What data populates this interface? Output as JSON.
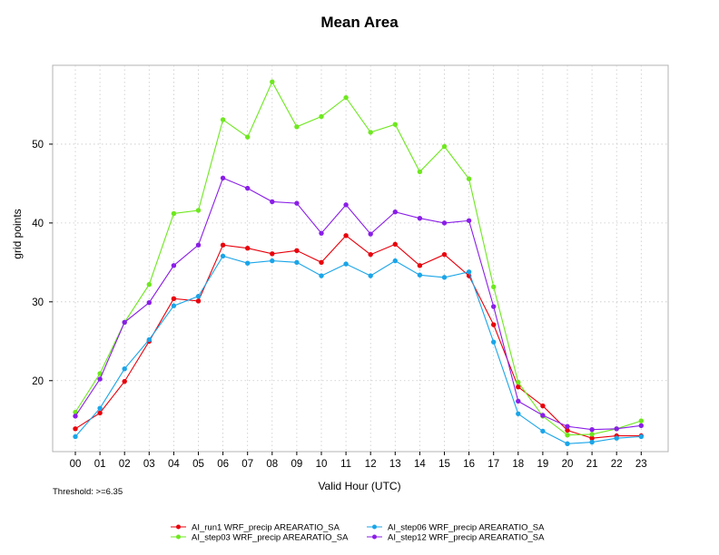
{
  "chart_data": {
    "type": "line",
    "title": "Mean Area",
    "xlabel": "Valid Hour (UTC)",
    "ylabel": "grid points",
    "note": "Threshold: >=6.35",
    "categories": [
      "00",
      "01",
      "02",
      "03",
      "04",
      "05",
      "06",
      "07",
      "08",
      "09",
      "10",
      "11",
      "12",
      "13",
      "14",
      "15",
      "16",
      "17",
      "18",
      "19",
      "20",
      "21",
      "22",
      "23"
    ],
    "ylim": [
      11,
      60
    ],
    "yticks": [
      20,
      30,
      40,
      50
    ],
    "grid": true,
    "legend_position": "bottom",
    "series": [
      {
        "name": "AI_run1 WRF_precip AREARATIO_SA",
        "color": "#e8000b",
        "values": [
          13.9,
          15.9,
          19.9,
          25.0,
          30.4,
          30.1,
          37.2,
          36.8,
          36.1,
          36.5,
          35.0,
          38.4,
          36.0,
          37.3,
          34.6,
          36.0,
          33.3,
          27.1,
          19.2,
          16.8,
          13.7,
          12.7,
          13.0,
          13.0
        ]
      },
      {
        "name": "AI_step03 WRF_precip AREARATIO_SA",
        "color": "#6ee81e",
        "values": [
          16.0,
          20.9,
          27.4,
          32.2,
          41.2,
          41.6,
          53.1,
          50.9,
          57.9,
          52.2,
          53.5,
          55.9,
          51.5,
          52.5,
          46.5,
          49.7,
          45.6,
          31.9,
          19.8,
          15.5,
          13.1,
          13.2,
          13.9,
          14.9
        ]
      },
      {
        "name": "AI_step06 WRF_precip AREARATIO_SA",
        "color": "#1aa5e8",
        "values": [
          12.9,
          16.5,
          21.5,
          25.2,
          29.5,
          30.7,
          35.8,
          34.9,
          35.2,
          35.0,
          33.3,
          34.8,
          33.3,
          35.2,
          33.4,
          33.1,
          33.8,
          24.9,
          15.8,
          13.6,
          12.0,
          12.2,
          12.7,
          12.9
        ]
      },
      {
        "name": "AI_step12 WRF_precip AREARATIO_SA",
        "color": "#8a1ee8",
        "values": [
          15.5,
          20.2,
          27.4,
          29.9,
          34.6,
          37.2,
          45.7,
          44.4,
          42.7,
          42.5,
          38.7,
          42.3,
          38.6,
          41.4,
          40.6,
          40.0,
          40.3,
          29.4,
          17.4,
          15.6,
          14.2,
          13.8,
          13.9,
          14.3
        ]
      }
    ]
  }
}
